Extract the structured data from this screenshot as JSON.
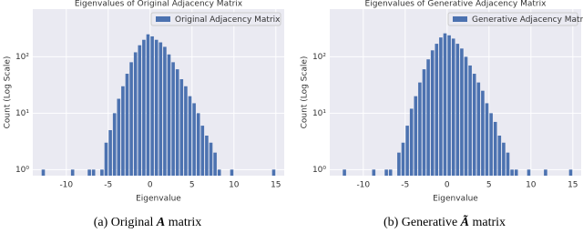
{
  "chart_data": [
    {
      "type": "histogram",
      "title": "Eigenvalues of Original Adjacency Matrix",
      "xlabel": "Eigenvalue",
      "ylabel": "Count (Log Scale)",
      "caption_prefix": "(a) Original",
      "caption_symbol": "A",
      "caption_suffix": "matrix",
      "log_y": true,
      "grid": true,
      "legend": "upper right",
      "xlim": [
        -14,
        16
      ],
      "ylim": [
        0.78,
        700
      ],
      "xticks": [
        -10,
        -5,
        0,
        5,
        10,
        15
      ],
      "yticks": [
        {
          "value": 1,
          "label": "10⁰"
        },
        {
          "value": 10,
          "label": "10¹"
        },
        {
          "value": 100,
          "label": "10²"
        }
      ],
      "bins": [
        -13,
        -12.5,
        -12,
        -11.5,
        -11,
        -10.5,
        -10,
        -9.5,
        -9,
        -8.5,
        -8,
        -7.5,
        -7,
        -6.5,
        -6,
        -5.5,
        -5,
        -4.5,
        -4,
        -3.5,
        -3,
        -2.5,
        -2,
        -1.5,
        -1,
        -0.5,
        0,
        0.5,
        1,
        1.5,
        2,
        2.5,
        3,
        3.5,
        4,
        4.5,
        5,
        5.5,
        6,
        6.5,
        7,
        7.5,
        8,
        8.5,
        9,
        9.5,
        10,
        10.5,
        11,
        11.5,
        12,
        12.5,
        13,
        13.5,
        14,
        14.5,
        15
      ],
      "series": [
        {
          "name": "Original Adjacency Matrix",
          "color": "#4c72b0",
          "values": [
            1,
            0,
            0,
            0,
            0,
            0,
            0,
            1,
            0,
            0,
            0,
            1,
            1,
            0,
            1,
            3,
            5,
            10,
            18,
            30,
            50,
            80,
            120,
            160,
            200,
            250,
            230,
            200,
            180,
            150,
            110,
            80,
            60,
            40,
            30,
            20,
            15,
            10,
            6,
            4,
            3,
            2,
            1,
            0,
            0,
            1,
            0,
            0,
            0,
            0,
            0,
            0,
            0,
            0,
            0,
            1
          ]
        }
      ]
    },
    {
      "type": "histogram",
      "title": "Eigenvalues of Generative Adjacency Matrix",
      "xlabel": "Eigenvalue",
      "ylabel": "Count (Log Scale)",
      "caption_prefix": "(b) Generative",
      "caption_symbol": "Ã",
      "caption_suffix": "matrix",
      "log_y": true,
      "grid": true,
      "legend": "upper right",
      "xlim": [
        -14,
        16
      ],
      "ylim": [
        0.78,
        700
      ],
      "xticks": [
        -10,
        -5,
        0,
        5,
        10,
        15
      ],
      "yticks": [
        {
          "value": 1,
          "label": "10⁰"
        },
        {
          "value": 10,
          "label": "10¹"
        },
        {
          "value": 100,
          "label": "10²"
        }
      ],
      "bins": [
        -13,
        -12.5,
        -12,
        -11.5,
        -11,
        -10.5,
        -10,
        -9.5,
        -9,
        -8.5,
        -8,
        -7.5,
        -7,
        -6.5,
        -6,
        -5.5,
        -5,
        -4.5,
        -4,
        -3.5,
        -3,
        -2.5,
        -2,
        -1.5,
        -1,
        -0.5,
        0,
        0.5,
        1,
        1.5,
        2,
        2.5,
        3,
        3.5,
        4,
        4.5,
        5,
        5.5,
        6,
        6.5,
        7,
        7.5,
        8,
        8.5,
        9,
        9.5,
        10,
        10.5,
        11,
        11.5,
        12,
        12.5,
        13,
        13.5,
        14,
        14.5,
        15
      ],
      "series": [
        {
          "name": "Generative Adjacency Matrix",
          "color": "#4c72b0",
          "values": [
            0,
            1,
            0,
            0,
            0,
            0,
            0,
            0,
            1,
            0,
            0,
            1,
            1,
            0,
            2,
            3,
            6,
            12,
            20,
            35,
            60,
            90,
            130,
            170,
            220,
            260,
            240,
            210,
            170,
            140,
            100,
            70,
            50,
            35,
            25,
            15,
            10,
            7,
            4,
            3,
            2,
            1,
            1,
            0,
            0,
            1,
            0,
            0,
            0,
            1,
            0,
            0,
            0,
            0,
            0,
            1
          ]
        }
      ]
    }
  ]
}
